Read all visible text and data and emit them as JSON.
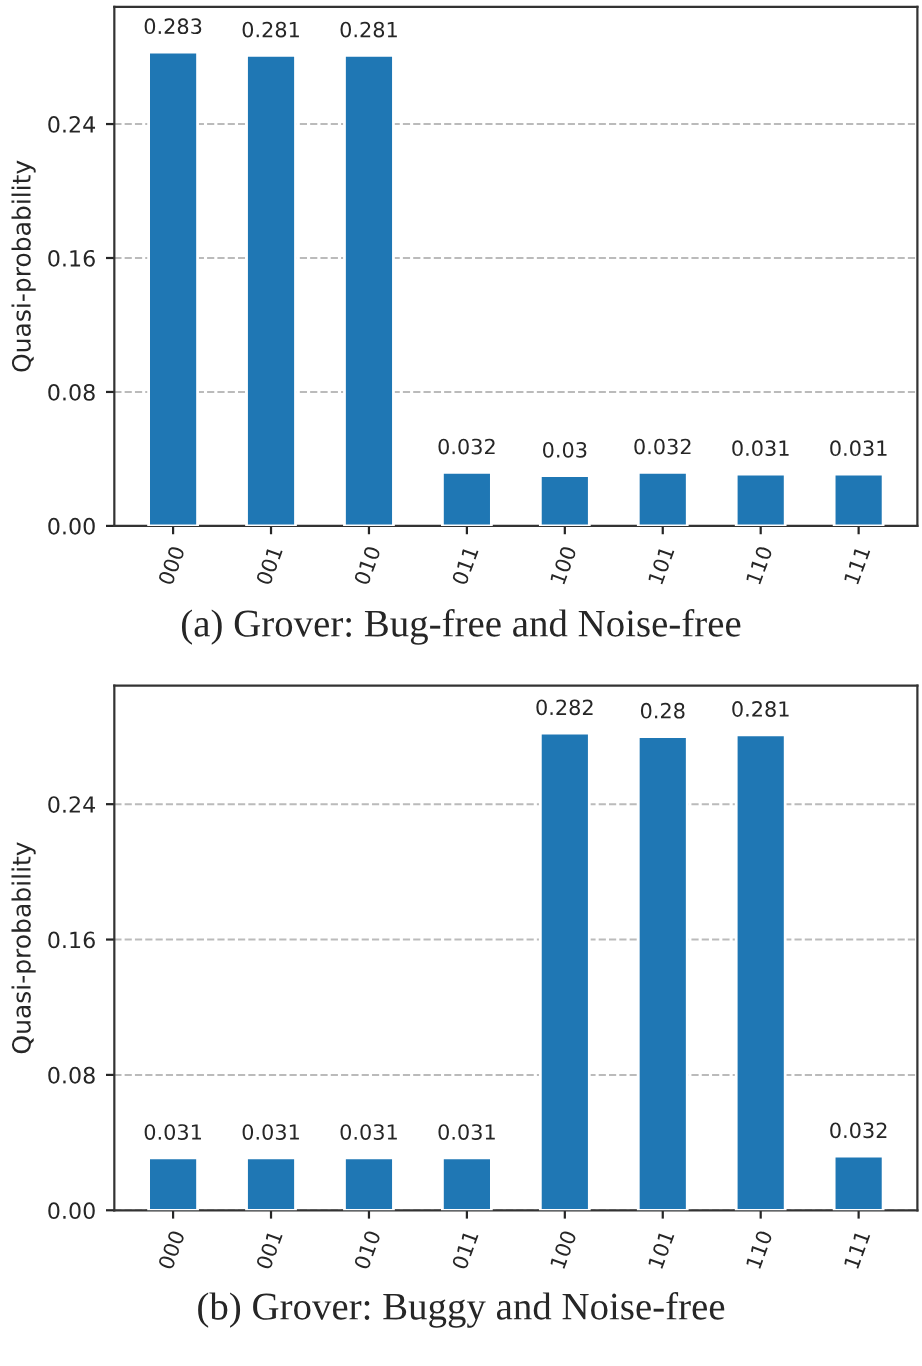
{
  "chart_data": [
    {
      "type": "bar",
      "categories": [
        "000",
        "001",
        "010",
        "011",
        "100",
        "101",
        "110",
        "111"
      ],
      "values": [
        0.283,
        0.281,
        0.281,
        0.032,
        0.03,
        0.032,
        0.031,
        0.031
      ],
      "color": "#1f77b4",
      "ylabel": "Quasi-probability",
      "ylim": [
        0,
        0.31
      ],
      "yticks": [
        {
          "value": 0,
          "label": "0.00"
        },
        {
          "value": 0.08,
          "label": "0.08"
        },
        {
          "value": 0.16,
          "label": "0.16"
        },
        {
          "value": 0.24,
          "label": "0.24"
        }
      ],
      "grid": "y",
      "data_labels": true,
      "annotations": [
        "(a) Grover: Bug-free and Noise-free"
      ]
    },
    {
      "type": "bar",
      "categories": [
        "000",
        "001",
        "010",
        "011",
        "100",
        "101",
        "110",
        "111"
      ],
      "values": [
        0.031,
        0.031,
        0.031,
        0.031,
        0.282,
        0.28,
        0.281,
        0.032
      ],
      "color": "#1f77b4",
      "ylabel": "Quasi-probability",
      "ylim": [
        0,
        0.31
      ],
      "yticks": [
        {
          "value": 0,
          "label": "0.00"
        },
        {
          "value": 0.08,
          "label": "0.08"
        },
        {
          "value": 0.16,
          "label": "0.16"
        },
        {
          "value": 0.24,
          "label": "0.24"
        }
      ],
      "grid": "y",
      "data_labels": true,
      "annotations": [
        "(b) Grover: Buggy and Noise-free"
      ]
    }
  ]
}
